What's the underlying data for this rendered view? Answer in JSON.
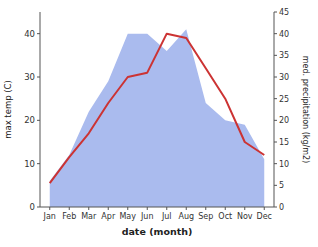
{
  "chart_data": {
    "type": "line",
    "categories": [
      "Jan",
      "Feb",
      "Mar",
      "Apr",
      "May",
      "Jun",
      "Jul",
      "Aug",
      "Sep",
      "Oct",
      "Nov",
      "Dec"
    ],
    "series": [
      {
        "type": "area",
        "axis": "y2",
        "color": "#aabbee",
        "values": [
          6,
          12,
          22,
          29,
          40,
          40,
          36,
          41,
          24,
          20,
          19,
          11
        ]
      },
      {
        "type": "line",
        "color": "#cc3333",
        "values": [
          5.5,
          11.5,
          17,
          24,
          30,
          31,
          40,
          39,
          32,
          25,
          15,
          12
        ]
      }
    ],
    "xlabel": "date (month)",
    "ylabel": "max temp (C)",
    "y2label": "med. precipitation (kg/m2)",
    "ylim": [
      0,
      45
    ],
    "yticks": [
      0,
      10,
      20,
      30,
      40
    ],
    "y2lim": [
      0,
      45
    ],
    "y2ticks": [
      0,
      5,
      10,
      15,
      20,
      25,
      30,
      35,
      40,
      45
    ],
    "grid": false
  }
}
